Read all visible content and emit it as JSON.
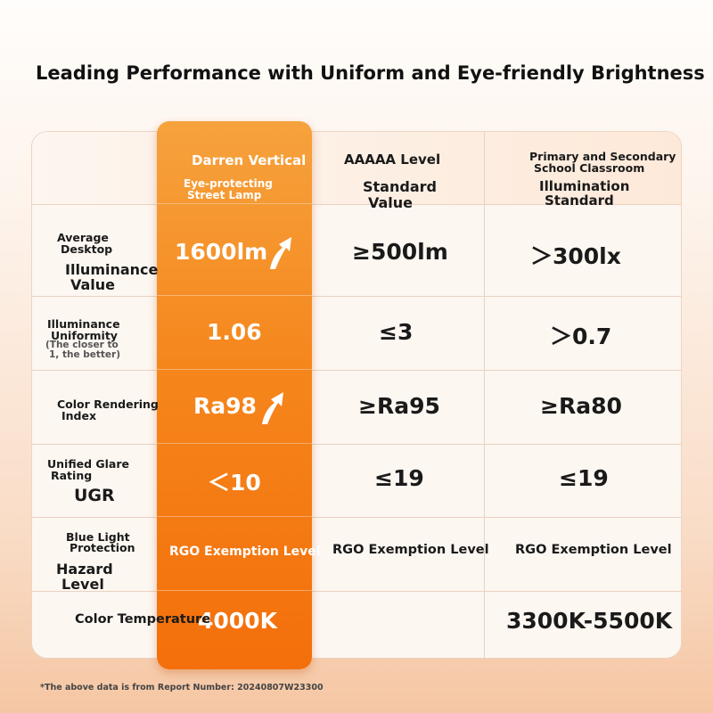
{
  "title": "Leading Performance with Uniform and Eye-friendly Brightness",
  "header": {
    "col1_line1": "Darren Vertical",
    "col1_line2": "Eye-protecting",
    "col1_line3": "Street Lamp",
    "col2_line1": "AAAAA Level",
    "col2_line2": "Standard",
    "col2_line3": "Value",
    "col3_line1": "Primary and Secondary",
    "col3_line2": "School Classroom",
    "col3_line3": "Illumination",
    "col3_line4": "Standard"
  },
  "rows": [
    {
      "label": [
        "Average",
        "Desktop",
        "Illuminance",
        "Value"
      ],
      "values": [
        "1600lm",
        "≥500lm",
        "＞300lx"
      ]
    },
    {
      "label": [
        "Illuminance",
        "Uniformity",
        "(The closer to",
        "1, the better)"
      ],
      "values": [
        "1.06",
        "≤3",
        "＞0.7"
      ]
    },
    {
      "label": [
        "Color Rendering",
        "Index"
      ],
      "values": [
        "Ra98",
        "≥Ra95",
        "≥Ra80"
      ]
    },
    {
      "label": [
        "Unified Glare",
        "Rating",
        "UGR"
      ],
      "values": [
        "＜10",
        "≤19",
        "≤19"
      ]
    },
    {
      "label": [
        "Blue Light",
        "Protection",
        "Hazard",
        "Level"
      ],
      "values": [
        "RGO Exemption Level",
        "RGO Exemption Level",
        "RGO Exemption Level"
      ]
    },
    {
      "label": [
        "Color Temperature"
      ],
      "values": [
        "4000K",
        "",
        "3300K-5500K"
      ]
    }
  ],
  "footnote": "*The above data is from Report Number: 20240807W23300",
  "colors": {
    "accent": "#f5861c",
    "accent_light": "#f6a23d",
    "accent_dark": "#f46f0b"
  },
  "icons": {
    "up_arrow": "curved-up-arrow-icon"
  }
}
